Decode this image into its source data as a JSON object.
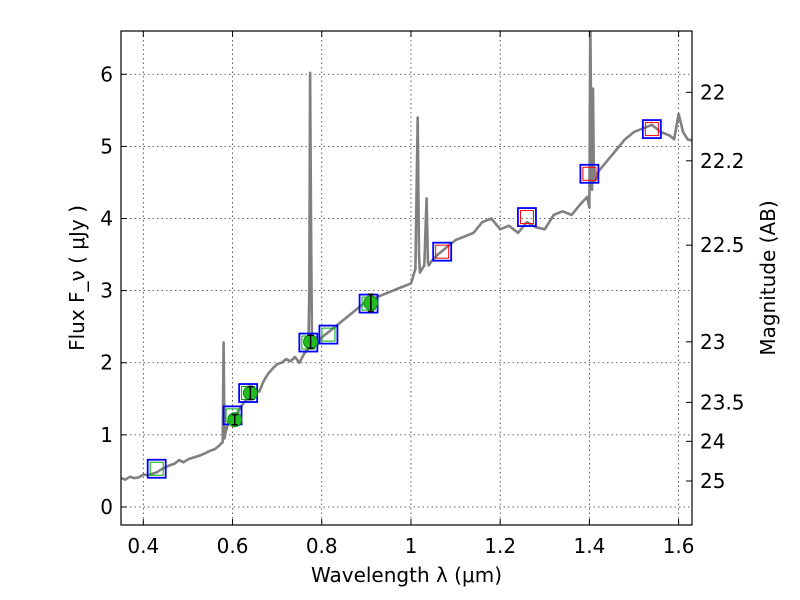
{
  "chart_data": {
    "type": "line",
    "title": "",
    "xlabel": "Wavelength  λ (μm)",
    "ylabel": "Flux  F_ν  ( μJy )",
    "y2label": "Magnitude (AB)",
    "xlim": [
      0.35,
      1.63
    ],
    "ylim": [
      -0.25,
      6.6
    ],
    "grid": true,
    "x_ticks": [
      0.4,
      0.6,
      0.8,
      1.0,
      1.2,
      1.4,
      1.6
    ],
    "x_tick_labels": [
      "0.4",
      "0.6",
      "0.8",
      "1",
      "1.2",
      "1.4",
      "1.6"
    ],
    "y_ticks": [
      0,
      1,
      2,
      3,
      4,
      5,
      6
    ],
    "y_tick_labels": [
      "0",
      "1",
      "2",
      "3",
      "4",
      "5",
      "6"
    ],
    "y2_ticks": [
      {
        "label": "22",
        "flux": 5.75
      },
      {
        "label": "22.2",
        "flux": 4.8
      },
      {
        "label": "22.5",
        "flux": 3.63
      },
      {
        "label": "23",
        "flux": 2.29
      },
      {
        "label": "23.5",
        "flux": 1.45
      },
      {
        "label": "24",
        "flux": 0.91
      },
      {
        "label": "25",
        "flux": 0.36
      }
    ],
    "colors": {
      "spectrum": "#808080",
      "box_outer": "#0000ff",
      "model_box_red": "#ff0000",
      "model_box_green": "#00aa00",
      "observed_point": "#22bb22",
      "errorbar": "#000000"
    },
    "series": [
      {
        "kind": "model_spectrum",
        "x": [
          0.35,
          0.36,
          0.37,
          0.38,
          0.39,
          0.4,
          0.41,
          0.42,
          0.43,
          0.44,
          0.45,
          0.46,
          0.47,
          0.48,
          0.49,
          0.5,
          0.51,
          0.52,
          0.53,
          0.54,
          0.55,
          0.56,
          0.57,
          0.578,
          0.58,
          0.582,
          0.585,
          0.59,
          0.6,
          0.61,
          0.62,
          0.63,
          0.64,
          0.65,
          0.66,
          0.67,
          0.68,
          0.69,
          0.7,
          0.71,
          0.72,
          0.73,
          0.74,
          0.75,
          0.76,
          0.77,
          0.772,
          0.774,
          0.776,
          0.778,
          0.78,
          0.79,
          0.8,
          0.82,
          0.84,
          0.86,
          0.88,
          0.9,
          0.92,
          0.94,
          0.96,
          0.98,
          1.0,
          1.01,
          1.015,
          1.018,
          1.02,
          1.025,
          1.03,
          1.035,
          1.038,
          1.04,
          1.045,
          1.06,
          1.08,
          1.1,
          1.12,
          1.14,
          1.16,
          1.18,
          1.2,
          1.22,
          1.24,
          1.26,
          1.28,
          1.3,
          1.32,
          1.34,
          1.36,
          1.38,
          1.395,
          1.4,
          1.402,
          1.404,
          1.406,
          1.408,
          1.41,
          1.415,
          1.42,
          1.44,
          1.46,
          1.48,
          1.5,
          1.52,
          1.54,
          1.56,
          1.58,
          1.59,
          1.6,
          1.61,
          1.62,
          1.63
        ],
        "y": [
          0.4,
          0.38,
          0.42,
          0.4,
          0.41,
          0.45,
          0.44,
          0.46,
          0.48,
          0.52,
          0.55,
          0.58,
          0.6,
          0.65,
          0.62,
          0.66,
          0.68,
          0.7,
          0.72,
          0.75,
          0.78,
          0.8,
          0.85,
          0.9,
          2.28,
          0.95,
          1.05,
          1.15,
          1.22,
          1.3,
          1.4,
          1.48,
          1.55,
          1.62,
          1.6,
          1.75,
          1.85,
          1.92,
          1.98,
          2.0,
          2.05,
          2.02,
          2.08,
          2.0,
          2.12,
          2.2,
          3.0,
          6.02,
          4.0,
          2.4,
          2.3,
          2.25,
          2.35,
          2.45,
          2.55,
          2.65,
          2.75,
          2.85,
          2.9,
          2.95,
          3.0,
          3.05,
          3.1,
          3.3,
          5.4,
          3.5,
          3.25,
          3.3,
          3.35,
          4.28,
          3.4,
          3.35,
          3.4,
          3.5,
          3.6,
          3.7,
          3.75,
          3.8,
          3.95,
          4.0,
          3.85,
          3.9,
          3.8,
          3.95,
          3.88,
          3.85,
          4.05,
          4.1,
          4.05,
          4.2,
          4.3,
          4.15,
          6.8,
          5.2,
          4.4,
          5.8,
          4.5,
          4.55,
          4.65,
          4.8,
          4.95,
          5.1,
          5.2,
          5.25,
          5.3,
          5.2,
          5.15,
          5.1,
          5.45,
          5.2,
          5.1,
          5.08
        ]
      },
      {
        "kind": "model_photometry_red",
        "x": [
          1.07,
          1.26,
          1.4,
          1.54
        ],
        "y": [
          3.54,
          4.02,
          4.62,
          5.24
        ]
      },
      {
        "kind": "model_photometry_green",
        "x": [
          0.43,
          0.6,
          0.635,
          0.77,
          0.815,
          0.905
        ],
        "y": [
          0.53,
          1.27,
          1.58,
          2.28,
          2.39,
          2.82
        ]
      },
      {
        "kind": "observed_photometry",
        "x": [
          0.605,
          0.64,
          0.775,
          0.91
        ],
        "y": [
          1.21,
          1.58,
          2.29,
          2.83
        ],
        "yerr": [
          0.07,
          0.09,
          0.09,
          0.12
        ]
      }
    ]
  }
}
